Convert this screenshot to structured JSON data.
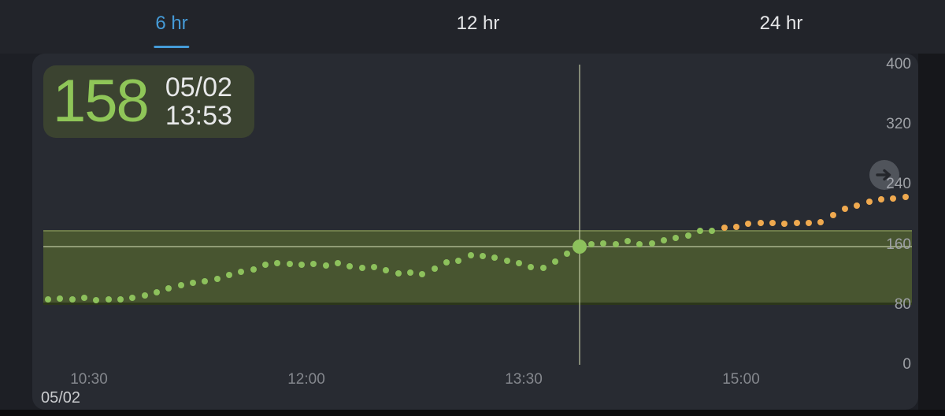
{
  "tabs": [
    {
      "label": "6 hr",
      "active": true
    },
    {
      "label": "12 hr",
      "active": false
    },
    {
      "label": "24 hr",
      "active": false
    }
  ],
  "reading": {
    "value": "158",
    "date": "05/02",
    "time": "13:53",
    "trend_direction": "right-steady"
  },
  "colors": {
    "accent_blue": "#459bd8",
    "glucose_in_range": "#8dc15c",
    "glucose_high": "#efa94f",
    "target_band": "#485530",
    "value_text": "#8fc658",
    "crosshair": "rgba(205,215,175,0.55)"
  },
  "chart_data": {
    "type": "scatter",
    "title": "",
    "xlabel": "",
    "ylabel": "",
    "ylim": [
      0,
      400
    ],
    "y_ticks": [
      400,
      320,
      240,
      160,
      80,
      0
    ],
    "x_ticks": [
      "10:30",
      "12:00",
      "13:30",
      "15:00"
    ],
    "x_date_label": "05/02",
    "grid": false,
    "interval_minutes": 5,
    "target_range": {
      "low": 80,
      "high": 180
    },
    "selected": {
      "date": "05/02",
      "time": "13:53",
      "value": 158
    },
    "points": [
      {
        "t": "10:13",
        "v": 87
      },
      {
        "t": "10:18",
        "v": 88
      },
      {
        "t": "10:23",
        "v": 87
      },
      {
        "t": "10:28",
        "v": 89
      },
      {
        "t": "10:33",
        "v": 86
      },
      {
        "t": "10:38",
        "v": 87
      },
      {
        "t": "10:43",
        "v": 87
      },
      {
        "t": "10:48",
        "v": 89
      },
      {
        "t": "10:53",
        "v": 92
      },
      {
        "t": "10:58",
        "v": 97
      },
      {
        "t": "11:03",
        "v": 102
      },
      {
        "t": "11:08",
        "v": 106
      },
      {
        "t": "11:13",
        "v": 109
      },
      {
        "t": "11:18",
        "v": 111
      },
      {
        "t": "11:23",
        "v": 114
      },
      {
        "t": "11:28",
        "v": 120
      },
      {
        "t": "11:33",
        "v": 124
      },
      {
        "t": "11:38",
        "v": 127
      },
      {
        "t": "11:43",
        "v": 133
      },
      {
        "t": "11:48",
        "v": 135
      },
      {
        "t": "11:53",
        "v": 134
      },
      {
        "t": "11:58",
        "v": 133
      },
      {
        "t": "12:03",
        "v": 134
      },
      {
        "t": "12:08",
        "v": 132
      },
      {
        "t": "12:13",
        "v": 135
      },
      {
        "t": "12:18",
        "v": 131
      },
      {
        "t": "12:23",
        "v": 129
      },
      {
        "t": "12:28",
        "v": 130
      },
      {
        "t": "12:33",
        "v": 126
      },
      {
        "t": "12:38",
        "v": 122
      },
      {
        "t": "12:43",
        "v": 123
      },
      {
        "t": "12:48",
        "v": 121
      },
      {
        "t": "12:53",
        "v": 128
      },
      {
        "t": "12:58",
        "v": 136
      },
      {
        "t": "13:03",
        "v": 139
      },
      {
        "t": "13:08",
        "v": 146
      },
      {
        "t": "13:13",
        "v": 145
      },
      {
        "t": "13:18",
        "v": 143
      },
      {
        "t": "13:23",
        "v": 139
      },
      {
        "t": "13:28",
        "v": 135
      },
      {
        "t": "13:33",
        "v": 130
      },
      {
        "t": "13:38",
        "v": 129
      },
      {
        "t": "13:43",
        "v": 138
      },
      {
        "t": "13:48",
        "v": 148
      },
      {
        "t": "13:53",
        "v": 158
      },
      {
        "t": "13:58",
        "v": 161
      },
      {
        "t": "14:03",
        "v": 162
      },
      {
        "t": "14:08",
        "v": 161
      },
      {
        "t": "14:13",
        "v": 165
      },
      {
        "t": "14:18",
        "v": 161
      },
      {
        "t": "14:23",
        "v": 162
      },
      {
        "t": "14:28",
        "v": 166
      },
      {
        "t": "14:33",
        "v": 169
      },
      {
        "t": "14:38",
        "v": 172
      },
      {
        "t": "14:43",
        "v": 178
      },
      {
        "t": "14:48",
        "v": 179
      },
      {
        "t": "14:53",
        "v": 183
      },
      {
        "t": "14:58",
        "v": 184
      },
      {
        "t": "15:03",
        "v": 188
      },
      {
        "t": "15:08",
        "v": 189
      },
      {
        "t": "15:13",
        "v": 189
      },
      {
        "t": "15:18",
        "v": 188
      },
      {
        "t": "15:23",
        "v": 189
      },
      {
        "t": "15:28",
        "v": 189
      },
      {
        "t": "15:33",
        "v": 190
      },
      {
        "t": "15:38",
        "v": 199
      },
      {
        "t": "15:43",
        "v": 208
      },
      {
        "t": "15:48",
        "v": 212
      },
      {
        "t": "15:53",
        "v": 217
      },
      {
        "t": "15:58",
        "v": 220
      },
      {
        "t": "16:03",
        "v": 222
      },
      {
        "t": "16:08",
        "v": 224
      }
    ]
  }
}
